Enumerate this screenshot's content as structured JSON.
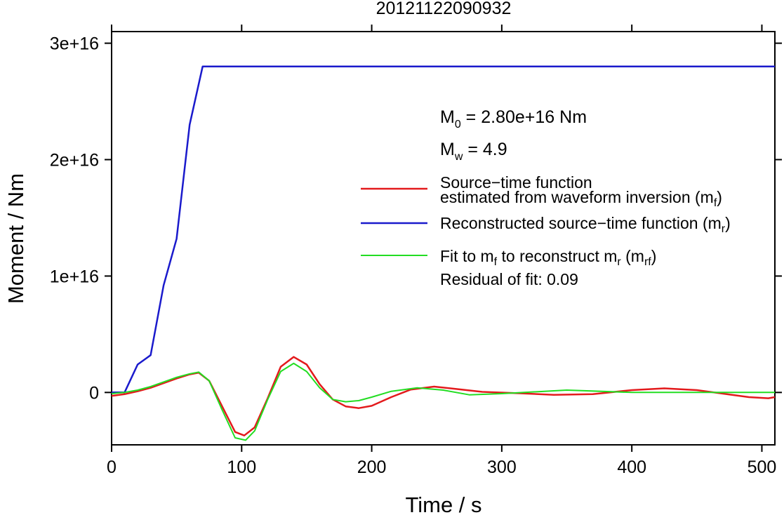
{
  "chart_data": {
    "type": "line",
    "title": "20121122090932",
    "xlabel": "Time / s",
    "ylabel": "Moment / Nm",
    "xlim": [
      0,
      510
    ],
    "ylim": [
      -4500000000000000.0,
      3.1e+16
    ],
    "x_ticks": [
      0,
      100,
      200,
      300,
      400,
      500
    ],
    "x_tick_labels": [
      "0",
      "100",
      "200",
      "300",
      "400",
      "500"
    ],
    "y_ticks": [
      0,
      1e+16,
      2e+16,
      3e+16
    ],
    "y_tick_labels": [
      "0",
      "1e+16",
      "2e+16",
      "3e+16"
    ],
    "grid": false,
    "legend_placement": "right",
    "annotations": {
      "m0_prefix": "M",
      "m0_sub": "0",
      "m0_value": " = 2.80e+16 Nm",
      "mw_prefix": "M",
      "mw_sub": "w",
      "mw_value": " = 4.9",
      "residual": "Residual of fit: 0.09"
    },
    "legend": {
      "red_line1": "Source−time function",
      "red_line2_pre": "estimated from waveform inversion (m",
      "red_line2_sub": "f",
      "red_line2_post": ")",
      "blue_pre": "Reconstructed source−time function (m",
      "blue_sub": "r",
      "blue_post": ")",
      "green_pre1": "Fit to m",
      "green_sub1": "f",
      "green_mid": " to reconstruct m",
      "green_sub2": "r",
      "green_mid2": " (m",
      "green_sub3": "rf",
      "green_post": ")"
    },
    "colors": {
      "red": "#e31a1c",
      "blue": "#1a1acc",
      "green": "#22dd22"
    },
    "series": [
      {
        "name": "Source−time function estimated from waveform inversion (mf)",
        "color": "#e31a1c",
        "x": [
          0,
          10,
          20,
          30,
          40,
          50,
          60,
          67,
          75,
          85,
          95,
          102,
          110,
          120,
          130,
          140,
          150,
          160,
          170,
          180,
          190,
          200,
          215,
          230,
          248,
          265,
          285,
          310,
          340,
          370,
          400,
          425,
          450,
          470,
          490,
          505,
          510
        ],
        "y": [
          -300000000000000.0,
          -150000000000000.0,
          100000000000000.0,
          400000000000000.0,
          800000000000000.0,
          1200000000000000.0,
          1550000000000000.0,
          1700000000000000.0,
          1000000000000000.0,
          -1200000000000000.0,
          -3400000000000000.0,
          -3700000000000000.0,
          -3000000000000000.0,
          -500000000000000.0,
          2200000000000000.0,
          3050000000000000.0,
          2400000000000000.0,
          700000000000000.0,
          -600000000000000.0,
          -1200000000000000.0,
          -1350000000000000.0,
          -1150000000000000.0,
          -400000000000000.0,
          250000000000000.0,
          500000000000000.0,
          300000000000000.0,
          50000000000000.0,
          -50000000000000.0,
          -200000000000000.0,
          -150000000000000.0,
          200000000000000.0,
          350000000000000.0,
          200000000000000.0,
          -100000000000000.0,
          -400000000000000.0,
          -500000000000000.0,
          -400000000000000.0
        ]
      },
      {
        "name": "Reconstructed source−time function (mr)",
        "color": "#1a1acc",
        "x": [
          0,
          10,
          20,
          30,
          40,
          50,
          60,
          70,
          510
        ],
        "y": [
          0,
          0,
          2400000000000000.0,
          3200000000000000.0,
          9200000000000000.0,
          1.32e+16,
          2.3e+16,
          2.8e+16,
          2.8e+16
        ]
      },
      {
        "name": "Fit to mf to reconstruct mr (mrf)",
        "color": "#22dd22",
        "x": [
          0,
          10,
          20,
          30,
          40,
          50,
          60,
          67,
          75,
          85,
          95,
          103,
          110,
          120,
          130,
          140,
          150,
          160,
          170,
          180,
          190,
          200,
          215,
          235,
          255,
          275,
          300,
          350,
          400,
          450,
          510
        ],
        "y": [
          -100000000000000.0,
          0,
          200000000000000.0,
          500000000000000.0,
          900000000000000.0,
          1300000000000000.0,
          1600000000000000.0,
          1750000000000000.0,
          1000000000000000.0,
          -1500000000000000.0,
          -3900000000000000.0,
          -4100000000000000.0,
          -3300000000000000.0,
          -600000000000000.0,
          1800000000000000.0,
          2500000000000000.0,
          1800000000000000.0,
          400000000000000.0,
          -600000000000000.0,
          -800000000000000.0,
          -700000000000000.0,
          -400000000000000.0,
          100000000000000.0,
          400000000000000.0,
          200000000000000.0,
          -200000000000000.0,
          -100000000000000.0,
          200000000000000.0,
          0,
          0,
          0
        ]
      }
    ]
  }
}
